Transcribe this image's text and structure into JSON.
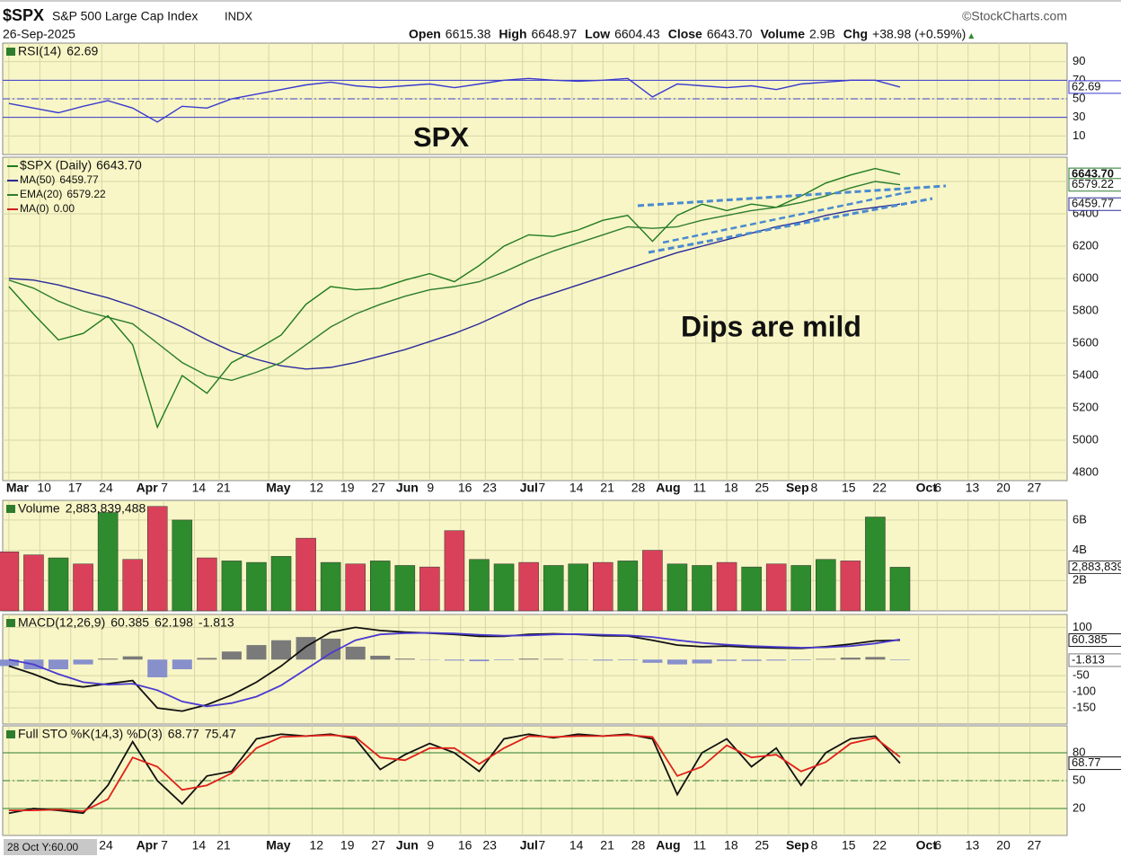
{
  "header": {
    "symbol": "$SPX",
    "name": "S&P 500 Large Cap Index",
    "exchange": "INDX",
    "source": "©StockCharts.com",
    "date": "26-Sep-2025",
    "quote": [
      {
        "label": "Open",
        "value": "6615.38"
      },
      {
        "label": "High",
        "value": "6648.97"
      },
      {
        "label": "Low",
        "value": "6604.43"
      },
      {
        "label": "Close",
        "value": "6643.70"
      },
      {
        "label": "Volume",
        "value": "2.9B"
      },
      {
        "label": "Chg",
        "value": "+38.98 (+0.59%)"
      }
    ],
    "cursor_label": "28 Oct Y:60.00"
  },
  "annotations": [
    {
      "text": "SPX",
      "color": "#e8261c"
    },
    {
      "text": "Dips are mild",
      "color": "#9a1ee6"
    }
  ],
  "chart_data": [
    {
      "type": "line",
      "title": "RSI(14)",
      "x": [
        0,
        4,
        8,
        12,
        16,
        20,
        24,
        28,
        32,
        36,
        40,
        44,
        48,
        52,
        56,
        60,
        64,
        68,
        72,
        76,
        80,
        84,
        88,
        92,
        96,
        100,
        104,
        108,
        112,
        116,
        120,
        124,
        128,
        132,
        136,
        140,
        144
      ],
      "series": [
        {
          "name": "RSI(14)",
          "color": "#3a3ad0",
          "box": true,
          "values": [
            45,
            40,
            35,
            42,
            48,
            40,
            25,
            42,
            40,
            50,
            55,
            60,
            65,
            68,
            64,
            62,
            64,
            66,
            62,
            66,
            70,
            72,
            70,
            69,
            70,
            72,
            52,
            66,
            64,
            62,
            64,
            60,
            66,
            68,
            70,
            70,
            62.69
          ]
        }
      ],
      "ylim": [
        -10,
        110
      ],
      "yticks": [
        10,
        30,
        50,
        70,
        90
      ],
      "levels": [
        {
          "value": 70,
          "dash": false
        },
        {
          "value": 50,
          "dash": true
        },
        {
          "value": 30,
          "dash": false
        }
      ],
      "level_color": "#3a3ad0"
    },
    {
      "type": "line",
      "title": "$SPX (Daily)",
      "x": [
        0,
        4,
        8,
        12,
        16,
        20,
        24,
        28,
        32,
        36,
        40,
        44,
        48,
        52,
        56,
        60,
        64,
        68,
        72,
        76,
        80,
        84,
        88,
        92,
        96,
        100,
        104,
        108,
        112,
        116,
        120,
        124,
        128,
        132,
        136,
        140,
        144
      ],
      "series": [
        {
          "name": "$SPX (Daily)",
          "color": "#1f7a1f",
          "last_label": "6643.70",
          "box": true,
          "values": [
            5950,
            5780,
            5620,
            5660,
            5770,
            5590,
            5080,
            5400,
            5290,
            5480,
            5560,
            5650,
            5840,
            5950,
            5930,
            5940,
            5990,
            6030,
            5980,
            6080,
            6200,
            6270,
            6260,
            6300,
            6360,
            6390,
            6230,
            6390,
            6460,
            6420,
            6460,
            6440,
            6510,
            6590,
            6640,
            6680,
            6643.7
          ]
        },
        {
          "name": "MA(50)",
          "color": "#2a2a9a",
          "last_label": "6459.77",
          "box": true,
          "values": [
            6000,
            5990,
            5960,
            5920,
            5880,
            5830,
            5770,
            5700,
            5620,
            5550,
            5500,
            5460,
            5440,
            5450,
            5480,
            5520,
            5560,
            5610,
            5660,
            5720,
            5790,
            5860,
            5910,
            5960,
            6010,
            6060,
            6110,
            6160,
            6200,
            6240,
            6280,
            6320,
            6350,
            6390,
            6420,
            6440,
            6459.77
          ]
        },
        {
          "name": "EMA(20)",
          "color": "#2e7d2e",
          "last_label": "6579.22",
          "box": true,
          "values": [
            5990,
            5940,
            5860,
            5800,
            5760,
            5720,
            5600,
            5480,
            5400,
            5370,
            5420,
            5480,
            5590,
            5700,
            5780,
            5840,
            5890,
            5930,
            5950,
            5980,
            6040,
            6110,
            6170,
            6220,
            6270,
            6320,
            6310,
            6320,
            6360,
            6390,
            6420,
            6440,
            6470,
            6510,
            6560,
            6600,
            6579.22
          ]
        }
      ],
      "legend_extra": [
        {
          "name": "MA(0)",
          "last_label": "0.00",
          "color": "#d02020"
        }
      ],
      "xlim": [
        -1,
        171
      ],
      "xticks": [
        {
          "value": 0,
          "label": "Mar"
        },
        {
          "value": 5,
          "label": "10"
        },
        {
          "value": 10,
          "label": "17"
        },
        {
          "value": 15,
          "label": "24"
        },
        {
          "value": 21,
          "label": "Apr"
        },
        {
          "value": 25,
          "label": "7"
        },
        {
          "value": 30,
          "label": "14"
        },
        {
          "value": 34,
          "label": "21"
        },
        {
          "value": 42,
          "label": "May"
        },
        {
          "value": 49,
          "label": "12"
        },
        {
          "value": 54,
          "label": "19"
        },
        {
          "value": 59,
          "label": "27"
        },
        {
          "value": 63,
          "label": "Jun"
        },
        {
          "value": 68,
          "label": "9"
        },
        {
          "value": 73,
          "label": "16"
        },
        {
          "value": 77,
          "label": "23"
        },
        {
          "value": 83,
          "label": "Jul"
        },
        {
          "value": 86,
          "label": "7"
        },
        {
          "value": 91,
          "label": "14"
        },
        {
          "value": 96,
          "label": "21"
        },
        {
          "value": 101,
          "label": "28"
        },
        {
          "value": 105,
          "label": "Aug"
        },
        {
          "value": 111,
          "label": "11"
        },
        {
          "value": 116,
          "label": "18"
        },
        {
          "value": 121,
          "label": "25"
        },
        {
          "value": 126,
          "label": "Sep"
        },
        {
          "value": 130,
          "label": "8"
        },
        {
          "value": 135,
          "label": "15"
        },
        {
          "value": 140,
          "label": "22"
        },
        {
          "value": 147,
          "label": "Oct"
        },
        {
          "value": 150,
          "label": "6"
        },
        {
          "value": 155,
          "label": "13"
        },
        {
          "value": 160,
          "label": "20"
        },
        {
          "value": 165,
          "label": "27"
        }
      ],
      "ylim": [
        4750,
        6750
      ],
      "yticks": [
        4800,
        5000,
        5200,
        5400,
        5600,
        5800,
        6000,
        6200,
        6400,
        6600
      ]
    },
    {
      "type": "bar",
      "title": "Volume",
      "x": [
        0,
        4,
        8,
        12,
        16,
        20,
        24,
        28,
        32,
        36,
        40,
        44,
        48,
        52,
        56,
        60,
        64,
        68,
        72,
        76,
        80,
        84,
        88,
        92,
        96,
        100,
        104,
        108,
        112,
        116,
        120,
        124,
        128,
        132,
        136,
        140,
        144
      ],
      "series": [
        {
          "name": "Volume",
          "type": "bar",
          "last_label": "2,883,839,488",
          "box": true,
          "color": "#2e8b2e",
          "colors": [
            "#d9415a",
            "#d9415a",
            "#2e8b2e",
            "#d9415a",
            "#2e8b2e",
            "#d9415a",
            "#d9415a",
            "#2e8b2e",
            "#d9415a",
            "#2e8b2e",
            "#2e8b2e",
            "#2e8b2e",
            "#d9415a",
            "#2e8b2e",
            "#d9415a",
            "#2e8b2e",
            "#2e8b2e",
            "#d9415a",
            "#d9415a",
            "#2e8b2e",
            "#2e8b2e",
            "#d9415a",
            "#2e8b2e",
            "#2e8b2e",
            "#d9415a",
            "#2e8b2e",
            "#d9415a",
            "#2e8b2e",
            "#2e8b2e",
            "#d9415a",
            "#2e8b2e",
            "#d9415a",
            "#2e8b2e",
            "#2e8b2e",
            "#d9415a",
            "#2e8b2e",
            "#2e8b2e"
          ],
          "values": [
            3900000000,
            3700000000,
            3500000000,
            3100000000,
            6500000000,
            3400000000,
            6900000000,
            6000000000,
            3500000000,
            3300000000,
            3200000000,
            3600000000,
            4800000000,
            3200000000,
            3100000000,
            3300000000,
            3000000000,
            2900000000,
            5300000000,
            3400000000,
            3100000000,
            3200000000,
            3000000000,
            3100000000,
            3200000000,
            3300000000,
            4000000000,
            3100000000,
            3000000000,
            3200000000,
            2900000000,
            3100000000,
            3000000000,
            3400000000,
            3300000000,
            6200000000,
            2883839488
          ]
        }
      ],
      "ylim": [
        0,
        7300000000
      ],
      "yticks": [
        {
          "value": 2000000000,
          "label": "2B"
        },
        {
          "value": 4000000000,
          "label": "4B"
        },
        {
          "value": 6000000000,
          "label": "6B"
        }
      ]
    },
    {
      "type": "line",
      "title": "MACD(12,26,9)",
      "x": [
        0,
        4,
        8,
        12,
        16,
        20,
        24,
        28,
        32,
        36,
        40,
        44,
        48,
        52,
        56,
        60,
        64,
        68,
        72,
        76,
        80,
        84,
        88,
        92,
        96,
        100,
        104,
        108,
        112,
        116,
        120,
        124,
        128,
        132,
        136,
        140,
        144
      ],
      "series": [
        {
          "name": "MACD",
          "color": "#111111",
          "box": true,
          "values": [
            -20,
            -45,
            -75,
            -85,
            -75,
            -65,
            -150,
            -160,
            -140,
            -110,
            -70,
            -20,
            40,
            85,
            100,
            90,
            85,
            82,
            78,
            72,
            72,
            78,
            80,
            78,
            74,
            73,
            60,
            45,
            40,
            42,
            38,
            36,
            35,
            40,
            48,
            58,
            60.385
          ]
        },
        {
          "name": "Signal",
          "color": "#4a3ad0",
          "values": [
            0,
            -15,
            -45,
            -70,
            -78,
            -75,
            -95,
            -130,
            -145,
            -135,
            -115,
            -80,
            -30,
            20,
            60,
            78,
            82,
            83,
            81,
            77,
            74,
            75,
            78,
            79,
            77,
            75,
            70,
            60,
            52,
            46,
            42,
            39,
            37,
            38,
            42,
            50,
            62.198
          ]
        },
        {
          "name": "Histogram",
          "type": "histogram",
          "color": "#7a7a7a",
          "negative_color": "#8890cc",
          "box": true,
          "values": [
            -20,
            -30,
            -30,
            -15,
            3,
            10,
            -55,
            -30,
            5,
            25,
            45,
            60,
            70,
            65,
            40,
            12,
            3,
            -1,
            -3,
            -5,
            -2,
            3,
            2,
            -1,
            -3,
            -2,
            -10,
            -15,
            -12,
            -4,
            -4,
            -3,
            -2,
            2,
            6,
            8,
            -1.813
          ]
        }
      ],
      "ylim": [
        -200,
        140
      ],
      "yticks": [
        -150,
        -100,
        -50,
        100
      ]
    },
    {
      "type": "line",
      "title": "Full STO %K(14,3) %D(3)",
      "x": [
        0,
        4,
        8,
        12,
        16,
        20,
        24,
        28,
        32,
        36,
        40,
        44,
        48,
        52,
        56,
        60,
        64,
        68,
        72,
        76,
        80,
        84,
        88,
        92,
        96,
        100,
        104,
        108,
        112,
        116,
        120,
        124,
        128,
        132,
        136,
        140,
        144
      ],
      "series": [
        {
          "name": "%K",
          "color": "#111111",
          "box": true,
          "values": [
            15,
            20,
            18,
            15,
            45,
            92,
            50,
            25,
            55,
            60,
            95,
            100,
            98,
            100,
            95,
            62,
            78,
            90,
            80,
            60,
            95,
            100,
            96,
            100,
            98,
            100,
            95,
            35,
            80,
            95,
            65,
            85,
            45,
            80,
            95,
            98,
            68.77
          ]
        },
        {
          "name": "%D",
          "color": "#e0201a",
          "values": [
            18,
            18,
            19,
            17,
            30,
            75,
            65,
            40,
            45,
            58,
            85,
            97,
            98,
            99,
            97,
            75,
            72,
            85,
            85,
            68,
            85,
            98,
            97,
            98,
            98,
            99,
            97,
            55,
            65,
            88,
            75,
            78,
            60,
            70,
            90,
            96,
            75.47
          ]
        }
      ],
      "ylim": [
        -9,
        109
      ],
      "yticks": [
        20,
        50,
        80
      ],
      "levels": [
        {
          "value": 80,
          "dash": false
        },
        {
          "value": 50,
          "dash": true
        },
        {
          "value": 20,
          "dash": false
        }
      ],
      "level_color": "#2e7d2e"
    }
  ]
}
